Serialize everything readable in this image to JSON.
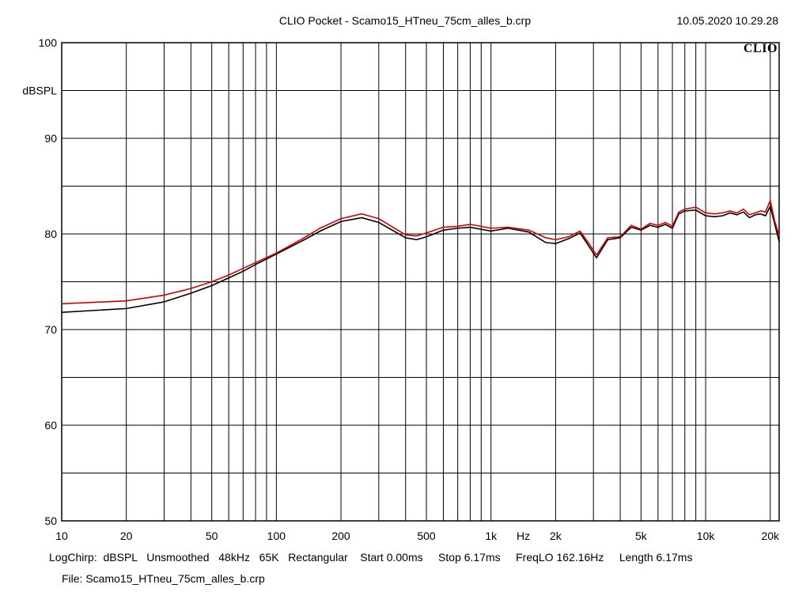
{
  "title": "CLIO Pocket - Scamo15_HTneu_75cm_alles_b.crp",
  "timestamp": "10.05.2020 10.29.28",
  "brand": "CLIO",
  "footer": {
    "line1": "LogChirp:  dBSPL   Unsmoothed   48kHz   65K   Rectangular    Start 0.00ms     Stop 6.17ms     FreqLO 162.16Hz     Length 6.17ms",
    "line2": "File: Scamo15_HTneu_75cm_alles_b.crp"
  },
  "colors": {
    "series_black": "#000000",
    "series_red": "#d40000",
    "grid": "#000000"
  },
  "chart_data": {
    "type": "line",
    "title": "CLIO Pocket - Scamo15_HTneu_75cm_alles_b.crp",
    "xlabel": "Hz",
    "ylabel": "dBSPL",
    "xscale": "log",
    "xlim": [
      10,
      22000
    ],
    "ylim": [
      50,
      100
    ],
    "grid": true,
    "x_ticks": [
      {
        "v": 10,
        "label": "10"
      },
      {
        "v": 20,
        "label": "20"
      },
      {
        "v": 50,
        "label": "50"
      },
      {
        "v": 100,
        "label": "100"
      },
      {
        "v": 200,
        "label": "200"
      },
      {
        "v": 500,
        "label": "500"
      },
      {
        "v": 1000,
        "label": "1k"
      },
      {
        "v": 2000,
        "label": "2k"
      },
      {
        "v": 5000,
        "label": "5k"
      },
      {
        "v": 10000,
        "label": "10k"
      },
      {
        "v": 20000,
        "label": "20k"
      }
    ],
    "y_ticks": [
      {
        "v": 50,
        "label": "50"
      },
      {
        "v": 60,
        "label": "60"
      },
      {
        "v": 70,
        "label": "70"
      },
      {
        "v": 80,
        "label": "80"
      },
      {
        "v": 90,
        "label": "90"
      },
      {
        "v": 100,
        "label": "100"
      }
    ],
    "series": [
      {
        "color": "#000000",
        "x": [
          10,
          20,
          30,
          40,
          50,
          60,
          70,
          80,
          100,
          130,
          160,
          200,
          250,
          300,
          400,
          450,
          500,
          600,
          700,
          800,
          1000,
          1200,
          1500,
          1800,
          2000,
          2300,
          2600,
          2900,
          3100,
          3500,
          4000,
          4500,
          5000,
          5500,
          6000,
          6500,
          7000,
          7500,
          8000,
          9000,
          10000,
          11000,
          12000,
          13000,
          14000,
          15000,
          16000,
          17000,
          18000,
          19000,
          20000,
          21000,
          22000
        ],
        "y": [
          71.8,
          72.2,
          72.9,
          73.8,
          74.6,
          75.4,
          76.1,
          76.8,
          77.9,
          79.2,
          80.3,
          81.3,
          81.7,
          81.2,
          79.6,
          79.4,
          79.7,
          80.4,
          80.6,
          80.7,
          80.3,
          80.6,
          80.2,
          79.1,
          79.0,
          79.5,
          80.1,
          78.5,
          77.5,
          79.4,
          79.6,
          80.7,
          80.4,
          80.9,
          80.7,
          81.0,
          80.6,
          82.1,
          82.4,
          82.5,
          81.9,
          81.8,
          81.9,
          82.2,
          82.0,
          82.3,
          81.7,
          82.0,
          82.1,
          81.9,
          82.9,
          81.0,
          79.2
        ]
      },
      {
        "color": "#d40000",
        "x": [
          10,
          20,
          30,
          40,
          50,
          60,
          70,
          80,
          100,
          130,
          160,
          200,
          250,
          300,
          400,
          450,
          500,
          600,
          700,
          800,
          1000,
          1200,
          1500,
          1800,
          2000,
          2300,
          2600,
          2900,
          3100,
          3500,
          4000,
          4500,
          5000,
          5500,
          6000,
          6500,
          7000,
          7500,
          8000,
          9000,
          10000,
          11000,
          12000,
          13000,
          14000,
          15000,
          16000,
          17000,
          18000,
          19000,
          20000,
          21000,
          22000
        ],
        "y": [
          72.7,
          73.0,
          73.6,
          74.3,
          75.0,
          75.7,
          76.4,
          77.0,
          78.0,
          79.4,
          80.6,
          81.6,
          82.1,
          81.6,
          79.9,
          79.8,
          80.1,
          80.7,
          80.8,
          81.0,
          80.6,
          80.7,
          80.4,
          79.6,
          79.4,
          79.7,
          80.3,
          78.8,
          77.8,
          79.6,
          79.7,
          80.9,
          80.5,
          81.1,
          80.9,
          81.2,
          80.8,
          82.3,
          82.6,
          82.8,
          82.2,
          82.1,
          82.2,
          82.4,
          82.2,
          82.6,
          82.0,
          82.2,
          82.4,
          82.3,
          83.5,
          81.3,
          79.8
        ]
      }
    ]
  }
}
